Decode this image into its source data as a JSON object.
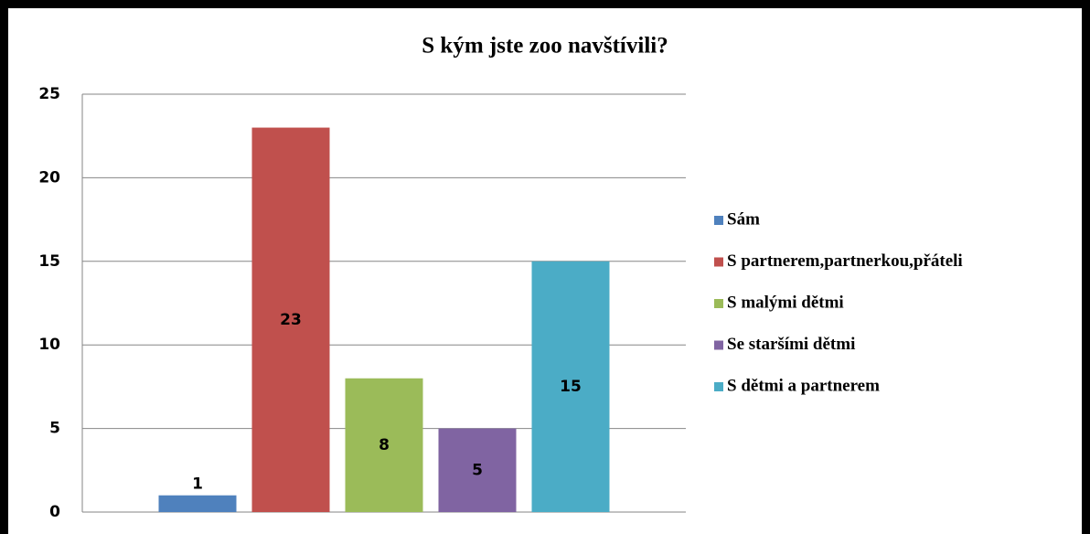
{
  "chart_data": {
    "type": "bar",
    "title": "S kým jste zoo navštívili?",
    "series": [
      {
        "name": "Sám",
        "color": "#4f81bd",
        "values": [
          1
        ]
      },
      {
        "name": "S partnerem,partnerkou,přáteli",
        "color": "#c0504d",
        "values": [
          23
        ]
      },
      {
        "name": "S malými dětmi",
        "color": "#9bbb59",
        "values": [
          8
        ]
      },
      {
        "name": "Se staršími dětmi",
        "color": "#8064a2",
        "values": [
          5
        ]
      },
      {
        "name": "S dětmi a partnerem",
        "color": "#4bacc6",
        "values": [
          15
        ]
      }
    ],
    "ylim": [
      0,
      25
    ],
    "yticks": [
      0,
      5,
      10,
      15,
      20,
      25
    ],
    "grid": true,
    "legend": "right"
  }
}
